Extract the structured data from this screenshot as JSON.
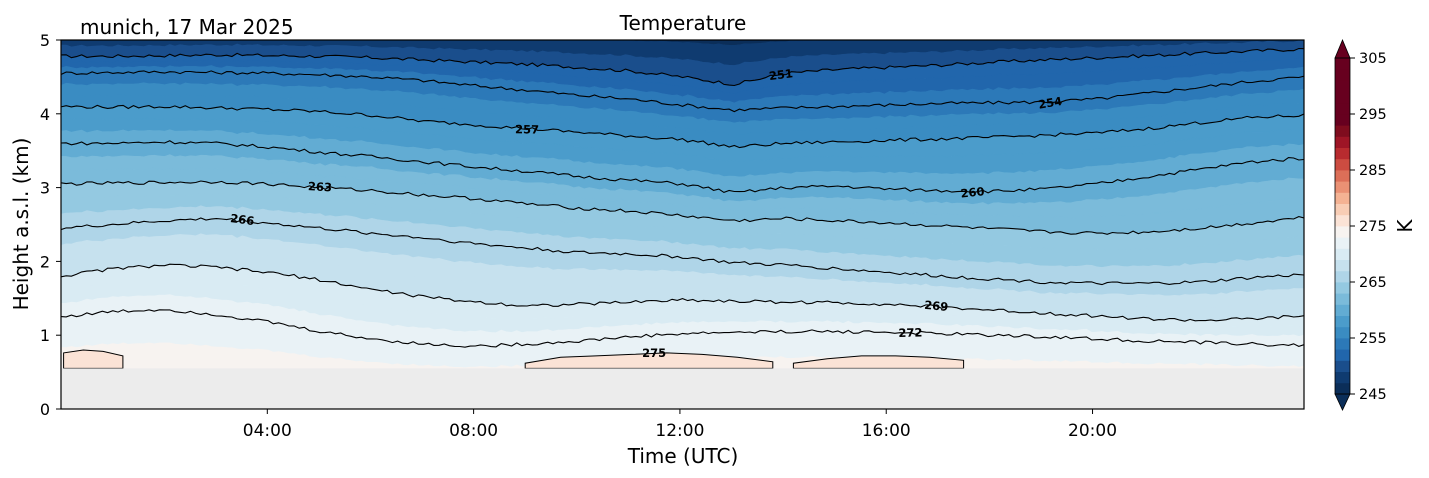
{
  "header": {
    "location_date": "munich, 17 Mar 2025",
    "title": "Temperature"
  },
  "chart_data": {
    "type": "contour",
    "title": "Temperature",
    "xlabel": "Time (UTC)",
    "ylabel": "Height a.s.l. (km)",
    "xlim_hours": [
      0,
      24.1
    ],
    "ylim_km": [
      0,
      5
    ],
    "x_ticks": [
      {
        "hour": 4,
        "label": "04:00"
      },
      {
        "hour": 8,
        "label": "08:00"
      },
      {
        "hour": 12,
        "label": "12:00"
      },
      {
        "hour": 16,
        "label": "16:00"
      },
      {
        "hour": 20,
        "label": "20:00"
      }
    ],
    "y_ticks": [
      {
        "value": 0,
        "label": "0"
      },
      {
        "value": 1,
        "label": "1"
      },
      {
        "value": 2,
        "label": "2"
      },
      {
        "value": 3,
        "label": "3"
      },
      {
        "value": 4,
        "label": "4"
      },
      {
        "value": 5,
        "label": "5"
      }
    ],
    "no_data_below_km": 0.55,
    "colorbar": {
      "label": "K",
      "min": 245,
      "max": 305,
      "step": 2,
      "ticks": [
        {
          "value": 305,
          "label": "305"
        },
        {
          "value": 295,
          "label": "295"
        },
        {
          "value": 285,
          "label": "285"
        },
        {
          "value": 275,
          "label": "275"
        },
        {
          "value": 265,
          "label": "265"
        },
        {
          "value": 255,
          "label": "255"
        },
        {
          "value": 245,
          "label": "245"
        }
      ],
      "colors_low_to_high": [
        "#0b2e59",
        "#0f3b70",
        "#1a4e8c",
        "#2166ac",
        "#2c79b8",
        "#3a8cc2",
        "#4b9ccb",
        "#62acd3",
        "#7bbbda",
        "#94c9e1",
        "#afd5e8",
        "#c6e1ee",
        "#d9ebf3",
        "#e9f2f6",
        "#f7f3f0",
        "#fbe3d6",
        "#f8cdb5",
        "#f4b293",
        "#ea9174",
        "#dc6f58",
        "#cc4c41",
        "#b82b2f",
        "#9e1526",
        "#7f0c1e",
        "#67001f"
      ]
    },
    "isotherms": [
      {
        "value": 251,
        "label": "251",
        "label_at_hour": 14.0,
        "heights_km": [
          4.78,
          4.78,
          4.79,
          4.8,
          4.79,
          4.78,
          4.76,
          4.73,
          4.7,
          4.67,
          4.63,
          4.58,
          4.5,
          4.4,
          4.55,
          4.6,
          4.63,
          4.66,
          4.7,
          4.73,
          4.76,
          4.79,
          4.82,
          4.85,
          4.88
        ]
      },
      {
        "value": 254,
        "label": "254",
        "label_at_hour": 19.2,
        "heights_km": [
          4.55,
          4.56,
          4.57,
          4.56,
          4.55,
          4.53,
          4.5,
          4.45,
          4.38,
          4.32,
          4.25,
          4.2,
          4.12,
          4.05,
          4.08,
          4.1,
          4.12,
          4.14,
          4.15,
          4.16,
          4.2,
          4.28,
          4.36,
          4.44,
          4.5
        ]
      },
      {
        "value": 257,
        "label": "257",
        "label_at_hour": 9.0,
        "heights_km": [
          4.1,
          4.09,
          4.1,
          4.08,
          4.06,
          4.03,
          3.98,
          3.9,
          3.85,
          3.8,
          3.75,
          3.7,
          3.65,
          3.55,
          3.6,
          3.62,
          3.64,
          3.66,
          3.68,
          3.71,
          3.74,
          3.8,
          3.88,
          3.95,
          3.98
        ]
      },
      {
        "value": 260,
        "label": "260",
        "label_at_hour": 17.7,
        "heights_km": [
          3.6,
          3.6,
          3.62,
          3.6,
          3.55,
          3.48,
          3.42,
          3.35,
          3.28,
          3.22,
          3.15,
          3.1,
          3.05,
          2.93,
          3.0,
          3.02,
          2.98,
          2.96,
          2.95,
          2.98,
          3.05,
          3.15,
          3.25,
          3.35,
          3.4
        ]
      },
      {
        "value": 263,
        "label": "263",
        "label_at_hour": 5.0,
        "heights_km": [
          3.05,
          3.06,
          3.07,
          3.08,
          3.05,
          3.0,
          2.96,
          2.9,
          2.85,
          2.78,
          2.72,
          2.68,
          2.62,
          2.55,
          2.58,
          2.55,
          2.52,
          2.48,
          2.44,
          2.4,
          2.38,
          2.4,
          2.45,
          2.52,
          2.6
        ]
      },
      {
        "value": 266,
        "label": "266",
        "label_at_hour": 3.5,
        "heights_km": [
          2.45,
          2.5,
          2.55,
          2.58,
          2.52,
          2.45,
          2.38,
          2.32,
          2.24,
          2.18,
          2.12,
          2.1,
          2.06,
          1.98,
          1.95,
          1.9,
          1.85,
          1.8,
          1.76,
          1.72,
          1.7,
          1.7,
          1.72,
          1.78,
          1.82
        ]
      },
      {
        "value": 269,
        "label": "269",
        "label_at_hour": 17.0,
        "heights_km": [
          1.8,
          1.9,
          1.95,
          1.92,
          1.85,
          1.75,
          1.62,
          1.52,
          1.45,
          1.4,
          1.42,
          1.45,
          1.48,
          1.46,
          1.45,
          1.44,
          1.42,
          1.38,
          1.34,
          1.3,
          1.26,
          1.22,
          1.2,
          1.22,
          1.26
        ]
      },
      {
        "value": 272,
        "label": "272",
        "label_at_hour": 16.5,
        "heights_km": [
          1.25,
          1.32,
          1.35,
          1.28,
          1.18,
          1.05,
          0.95,
          0.88,
          0.85,
          0.88,
          0.92,
          0.98,
          1.02,
          1.04,
          1.05,
          1.05,
          1.04,
          1.02,
          1.0,
          0.98,
          0.95,
          0.92,
          0.9,
          0.88,
          0.86
        ]
      }
    ],
    "warm_patches": [
      {
        "value": 275,
        "label": "275",
        "label_at_hour": 11.5,
        "start_hour": 9.0,
        "end_hour": 13.8,
        "top_heights_km": [
          0.62,
          0.7,
          0.72,
          0.74,
          0.76,
          0.74,
          0.7,
          0.64
        ]
      },
      {
        "value": 275,
        "label": "",
        "start_hour": 14.2,
        "end_hour": 17.5,
        "top_heights_km": [
          0.62,
          0.68,
          0.72,
          0.72,
          0.7,
          0.66
        ]
      },
      {
        "value": 275,
        "label": "",
        "start_hour": 0.05,
        "end_hour": 1.2,
        "top_heights_km": [
          0.76,
          0.8,
          0.78,
          0.72
        ]
      }
    ]
  }
}
